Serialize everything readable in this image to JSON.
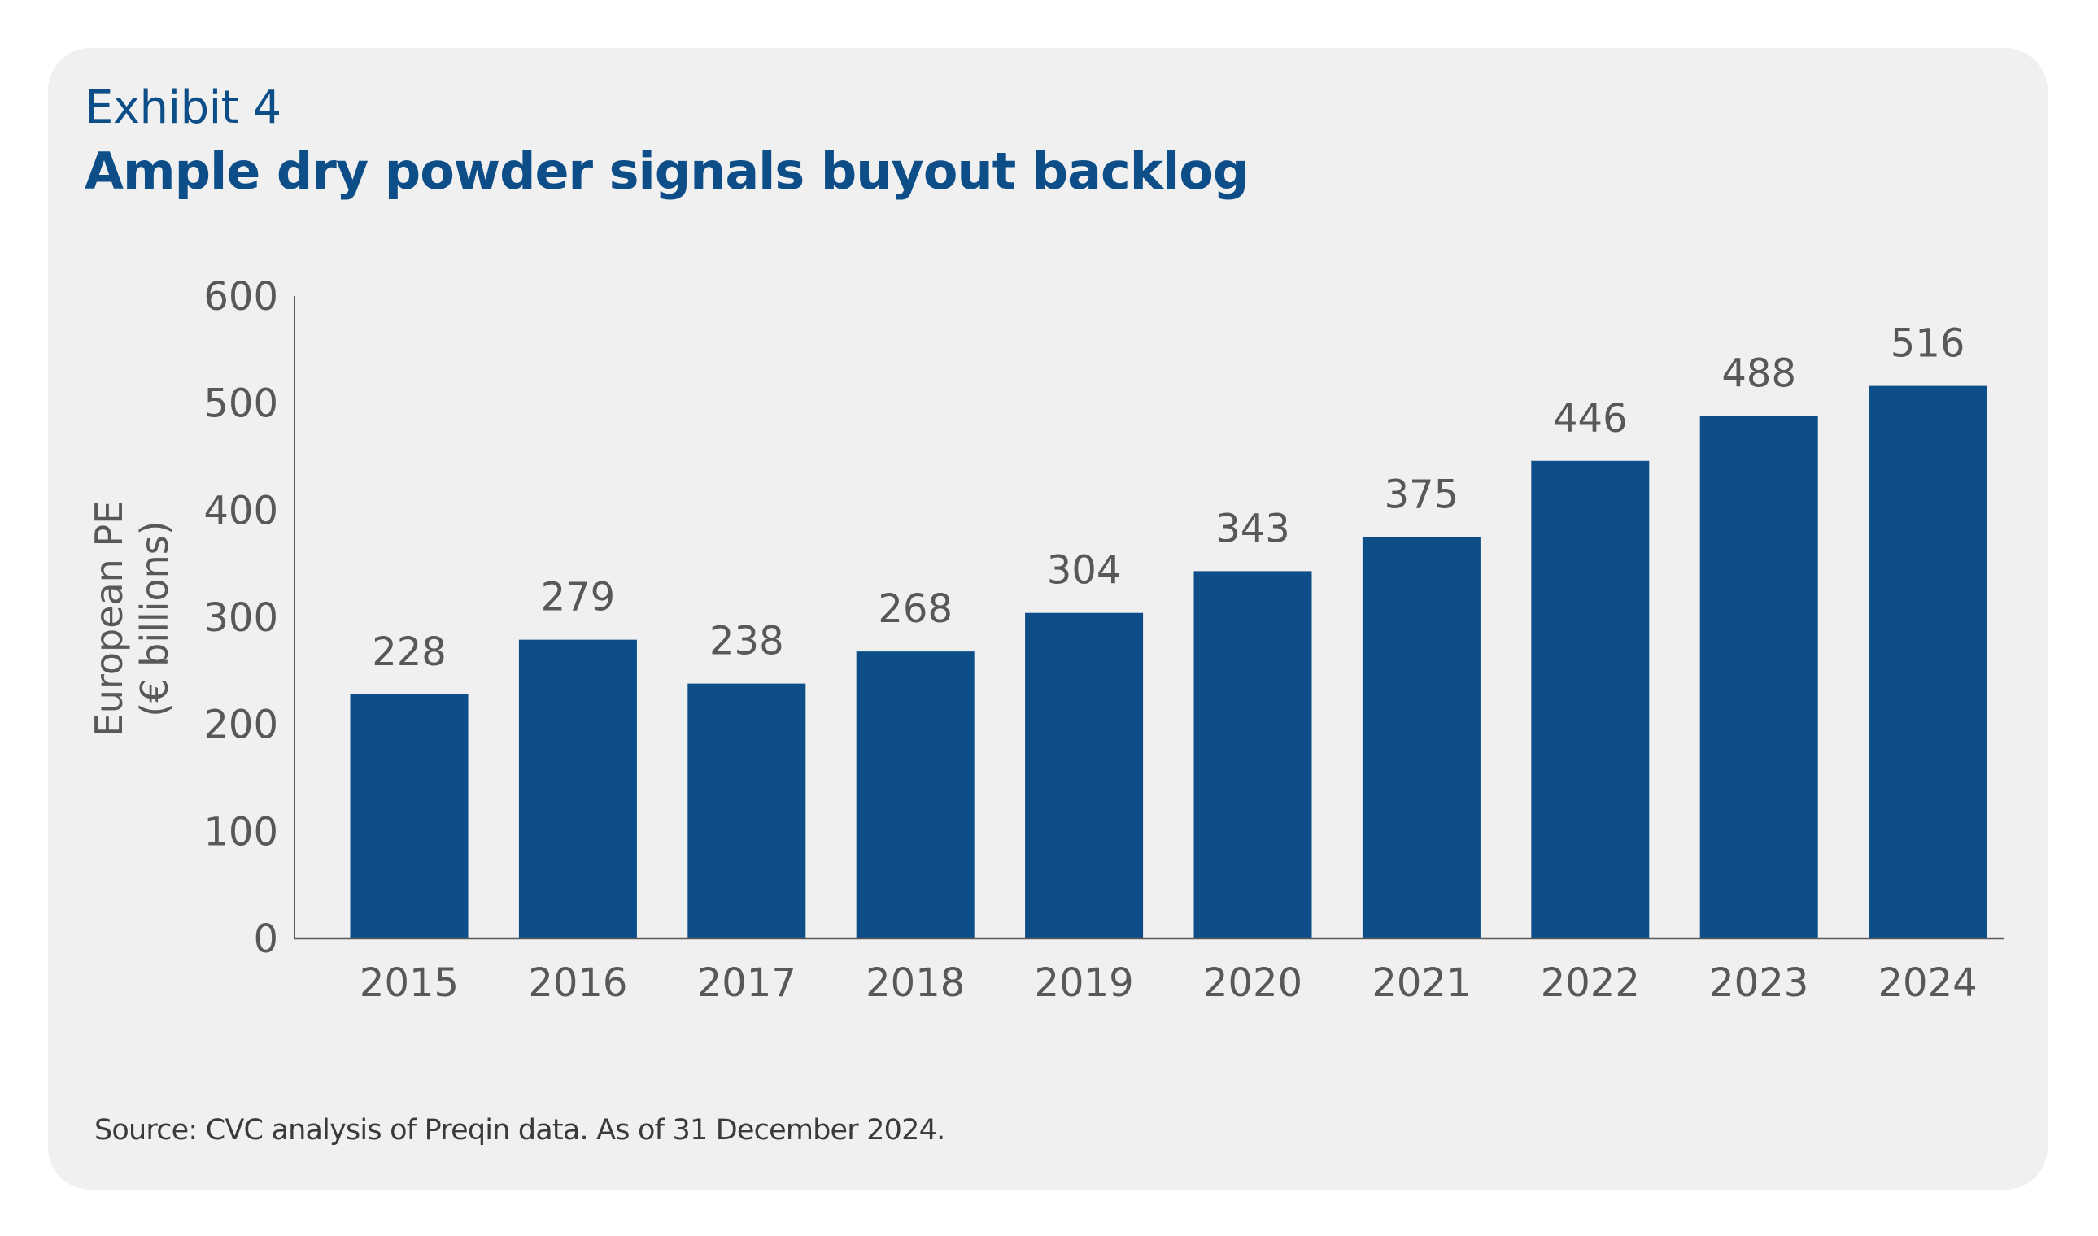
{
  "header": {
    "exhibit": "Exhibit 4",
    "title": "Ample dry powder signals buyout backlog"
  },
  "footer": {
    "source": "Source: CVC analysis of Preqin data. As of 31 December 2024."
  },
  "colors": {
    "bar": "#0d4e88",
    "title": "#0d4e88",
    "text": "#585858",
    "axis": "#5a5a5a",
    "card_background": "#f0f0f0"
  },
  "chart_data": {
    "type": "bar",
    "title": "Ample dry powder signals buyout backlog",
    "xlabel": "",
    "ylabel_lines": [
      "European PE",
      "(€ billions)"
    ],
    "ylabel": "European PE (€ billions)",
    "categories": [
      "2015",
      "2016",
      "2017",
      "2018",
      "2019",
      "2020",
      "2021",
      "2022",
      "2023",
      "2024"
    ],
    "values": [
      228,
      279,
      238,
      268,
      304,
      343,
      375,
      446,
      488,
      516
    ],
    "data_labels": [
      "228",
      "279",
      "238",
      "268",
      "304",
      "343",
      "375",
      "446",
      "488",
      "516"
    ],
    "ylim": [
      0,
      600
    ],
    "yticks": [
      0,
      100,
      200,
      300,
      400,
      500,
      600
    ],
    "ytick_labels": [
      "0",
      "100",
      "200",
      "300",
      "400",
      "500",
      "600"
    ],
    "grid": false,
    "legend": "none"
  }
}
